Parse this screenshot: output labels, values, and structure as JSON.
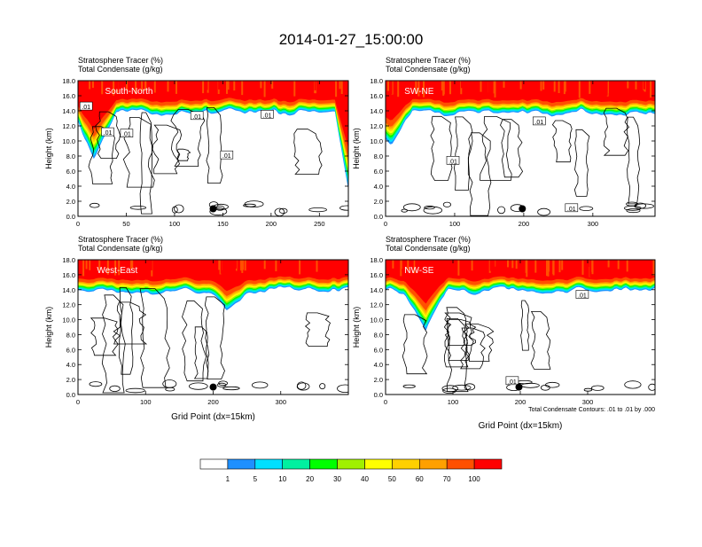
{
  "title": "2014-01-27_15:00:00",
  "colors": {
    "white": "#ffffff",
    "c1": "#1e90ff",
    "c5": "#00e0ff",
    "c10": "#00f0a0",
    "c20": "#00ff00",
    "c30": "#a0f000",
    "c40": "#ffff00",
    "c50": "#ffd000",
    "c60": "#ffa000",
    "c70": "#ff5000",
    "c100": "#ff0000"
  },
  "colorbar": {
    "labels": [
      "1",
      "5",
      "10",
      "20",
      "30",
      "40",
      "50",
      "60",
      "70",
      "100"
    ]
  },
  "chart_data": [
    {
      "type": "heatmap",
      "title_line1": "Stratosphere Tracer   (%)",
      "title_line2": "Total Condensate   (g/kg)",
      "label": "South-North",
      "ylabel": "Height (km)",
      "xlabel": "",
      "xlim": [
        0,
        280
      ],
      "xticks": [
        "0",
        "50",
        "100",
        "150",
        "200",
        "250"
      ],
      "ylim": [
        0,
        18
      ],
      "yticks": [
        "0.0",
        "2.0",
        "4.0",
        "6.0",
        "8.0",
        "10.0",
        "12.0",
        "14.0",
        "16.0",
        "18.0"
      ],
      "contour_labels": [
        ".01",
        ".01",
        ".01",
        ".01",
        ".01",
        ".01"
      ],
      "marker": {
        "x": 140,
        "y": 1.0
      }
    },
    {
      "type": "heatmap",
      "title_line1": "Stratosphere Tracer   (%)",
      "title_line2": "Total Condensate   (g/kg)",
      "label": "SW-NE",
      "ylabel": "Height (km)",
      "xlabel": "",
      "xlim": [
        0,
        390
      ],
      "xticks": [
        "0",
        "100",
        "200",
        "300"
      ],
      "ylim": [
        0,
        18
      ],
      "yticks": [
        "0.0",
        "2.0",
        "4.0",
        "6.0",
        "8.0",
        "10.0",
        "12.0",
        "14.0",
        "16.0",
        "18.0"
      ],
      "contour_labels": [
        ".01",
        ".01",
        ".01"
      ],
      "marker": {
        "x": 198,
        "y": 1.0
      }
    },
    {
      "type": "heatmap",
      "title_line1": "Stratosphere Tracer   (%)",
      "title_line2": "Total Condensate   (g/kg)",
      "label": "West-East",
      "ylabel": "Height (km)",
      "xlabel": "Grid Point (dx=15km)",
      "xlim": [
        0,
        400
      ],
      "xticks": [
        "0",
        "100",
        "200",
        "300"
      ],
      "ylim": [
        0,
        18
      ],
      "yticks": [
        "0.0",
        "2.0",
        "4.0",
        "6.0",
        "8.0",
        "10.0",
        "12.0",
        "14.0",
        "16.0",
        "18.0"
      ],
      "contour_labels": [],
      "marker": {
        "x": 200,
        "y": 1.0
      }
    },
    {
      "type": "heatmap",
      "title_line1": "Stratosphere Tracer   (%)",
      "title_line2": "Total Condensate   (g/kg)",
      "label": "NW-SE",
      "ylabel": "Height (km)",
      "xlabel": "Grid Point (dx=15km)",
      "xlim": [
        0,
        400
      ],
      "xticks": [
        "0",
        "100",
        "200",
        "300"
      ],
      "ylim": [
        0,
        18
      ],
      "yticks": [
        "0.0",
        "2.0",
        "4.0",
        "6.0",
        "8.0",
        "10.0",
        "12.0",
        "14.0",
        "16.0",
        "18.0"
      ],
      "contour_labels": [
        ".01",
        ".01"
      ],
      "marker": {
        "x": 198,
        "y": 1.0
      },
      "footnote": "Total Condensate Contours: .01 to .01 by .000"
    }
  ]
}
